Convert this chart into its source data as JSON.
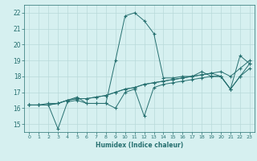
{
  "xlabel": "Humidex (Indice chaleur)",
  "ylabel": "",
  "bg_color": "#d6f0f0",
  "grid_color": "#b8dada",
  "line_color": "#267070",
  "xlim": [
    -0.5,
    23.5
  ],
  "ylim": [
    14.5,
    22.5
  ],
  "xticks": [
    0,
    1,
    2,
    3,
    4,
    5,
    6,
    7,
    8,
    9,
    10,
    11,
    12,
    13,
    14,
    15,
    16,
    17,
    18,
    19,
    20,
    21,
    22,
    23
  ],
  "yticks": [
    15,
    16,
    17,
    18,
    19,
    20,
    21,
    22
  ],
  "lines": [
    {
      "x": [
        0,
        1,
        2,
        3,
        4,
        5,
        6,
        7,
        8,
        9,
        10,
        11,
        12,
        13,
        14,
        15,
        16,
        17,
        18,
        19,
        20,
        21,
        22,
        23
      ],
      "y": [
        16.2,
        16.2,
        16.3,
        16.3,
        16.5,
        16.7,
        16.3,
        16.3,
        16.3,
        19.0,
        21.8,
        22.0,
        21.5,
        20.7,
        17.9,
        17.9,
        18.0,
        18.0,
        18.3,
        18.0,
        18.0,
        17.2,
        19.3,
        18.8
      ]
    },
    {
      "x": [
        0,
        1,
        2,
        3,
        4,
        5,
        6,
        7,
        8,
        9,
        10,
        11,
        12,
        13,
        14,
        15,
        16,
        17,
        18,
        19,
        20,
        21,
        22,
        23
      ],
      "y": [
        16.2,
        16.2,
        16.2,
        14.7,
        16.4,
        16.5,
        16.3,
        16.3,
        16.3,
        16.0,
        17.0,
        17.2,
        15.5,
        17.3,
        17.5,
        17.6,
        17.7,
        17.8,
        17.9,
        18.0,
        18.0,
        17.2,
        18.0,
        18.8
      ]
    },
    {
      "x": [
        0,
        1,
        2,
        3,
        4,
        5,
        6,
        7,
        8,
        9,
        10,
        11,
        12,
        13,
        14,
        15,
        16,
        17,
        18,
        19,
        20,
        21,
        22,
        23
      ],
      "y": [
        16.2,
        16.2,
        16.2,
        16.3,
        16.5,
        16.6,
        16.6,
        16.7,
        16.8,
        17.0,
        17.2,
        17.3,
        17.5,
        17.6,
        17.7,
        17.8,
        17.9,
        18.0,
        18.1,
        18.2,
        18.3,
        18.0,
        18.5,
        19.0
      ]
    },
    {
      "x": [
        0,
        1,
        2,
        3,
        4,
        5,
        6,
        7,
        8,
        9,
        10,
        11,
        12,
        13,
        14,
        15,
        16,
        17,
        18,
        19,
        20,
        21,
        22,
        23
      ],
      "y": [
        16.2,
        16.2,
        16.2,
        16.3,
        16.5,
        16.6,
        16.6,
        16.7,
        16.8,
        17.0,
        17.2,
        17.3,
        17.5,
        17.6,
        17.7,
        17.8,
        17.9,
        18.0,
        18.1,
        18.2,
        18.0,
        17.2,
        18.0,
        18.5
      ]
    }
  ]
}
